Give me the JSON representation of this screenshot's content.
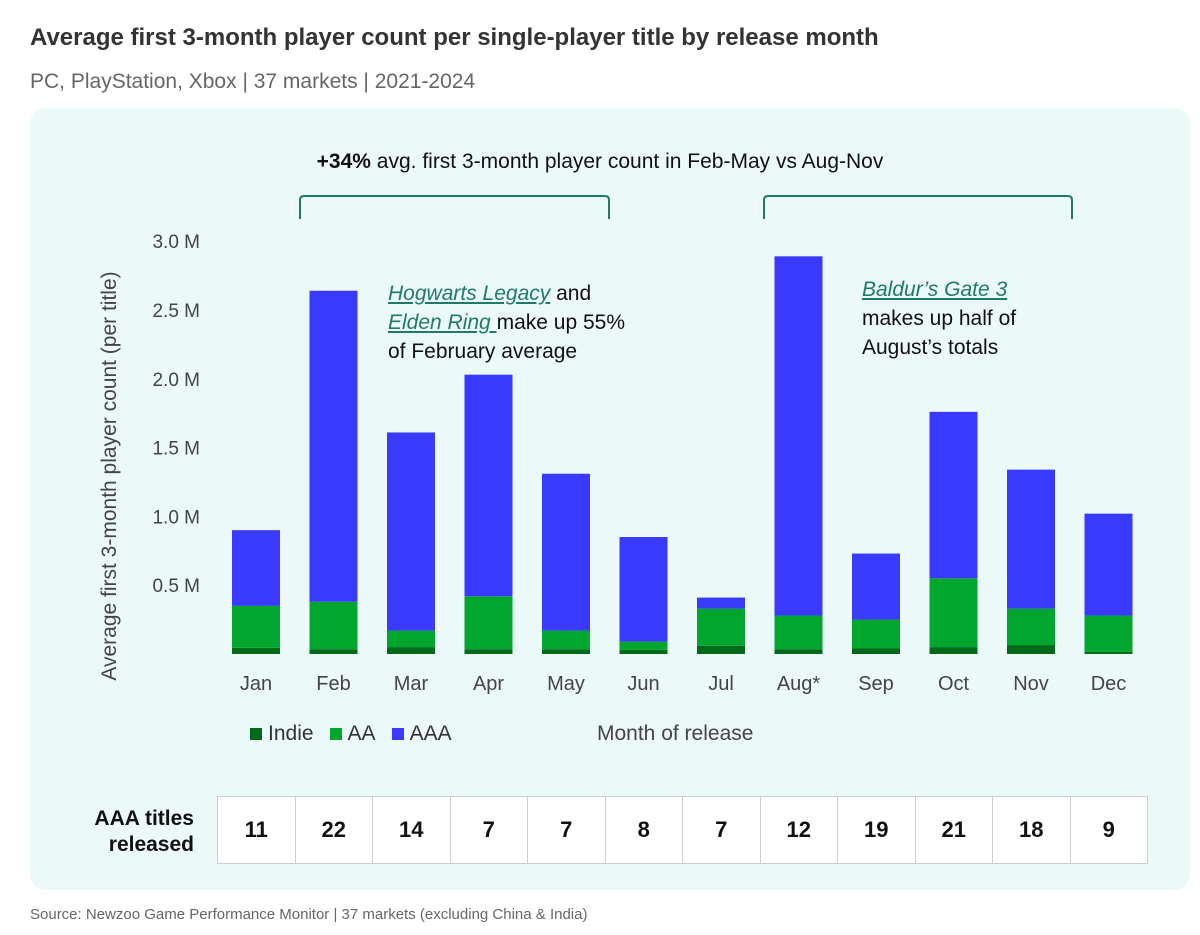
{
  "title": "Average first 3-month player count per single-player title by release month",
  "subtitle": "PC, PlayStation, Xbox | 37 markets | 2021-2024",
  "headline": {
    "bold": "+34%",
    "rest": " avg. first 3-month player count in Feb-May vs Aug-Nov"
  },
  "annotations": {
    "feb": {
      "link1": "Hogwarts Legacy",
      "t1": " and",
      "link2": "Elden Ring ",
      "t2": " make up 55%",
      "t3": "of February average"
    },
    "aug": {
      "link1": "Baldur’s Gate 3",
      "t2": "makes up half of",
      "t3": "August’s totals"
    }
  },
  "colors": {
    "Indie": "#006a1a",
    "AA": "#00a62e",
    "AAA": "#3a3aff",
    "accent": "#1f7a68",
    "background": "#ebf9f8"
  },
  "chart_data": {
    "type": "bar",
    "stacked": true,
    "categories": [
      "Jan",
      "Feb",
      "Mar",
      "Apr",
      "May",
      "Jun",
      "Jul",
      "Aug*",
      "Sep",
      "Oct",
      "Nov",
      "Dec"
    ],
    "series": [
      {
        "name": "Indie",
        "values": [
          0.045,
          0.035,
          0.05,
          0.035,
          0.035,
          0.03,
          0.06,
          0.035,
          0.04,
          0.05,
          0.065,
          0.015
        ]
      },
      {
        "name": "AA",
        "values": [
          0.305,
          0.345,
          0.12,
          0.385,
          0.135,
          0.06,
          0.27,
          0.245,
          0.21,
          0.5,
          0.265,
          0.265
        ]
      },
      {
        "name": "AAA",
        "values": [
          0.55,
          2.26,
          1.44,
          1.61,
          1.14,
          0.76,
          0.08,
          2.61,
          0.48,
          1.21,
          1.01,
          0.74
        ]
      }
    ],
    "xlabel": "Month of release",
    "ylabel": "Average first 3-month player count (per title)",
    "ylim": [
      0,
      3.0
    ],
    "yticks": [
      "0.5 M",
      "1.0 M",
      "1.5 M",
      "2.0 M",
      "2.5 M",
      "3.0 M"
    ],
    "grid": false,
    "legend": "bottom-left"
  },
  "table": {
    "label": "AAA titles released",
    "values": [
      "11",
      "22",
      "14",
      "7",
      "7",
      "8",
      "7",
      "12",
      "19",
      "21",
      "18",
      "9"
    ]
  },
  "source": "Source: Newzoo Game Performance Monitor | 37 markets (excluding China & India)"
}
